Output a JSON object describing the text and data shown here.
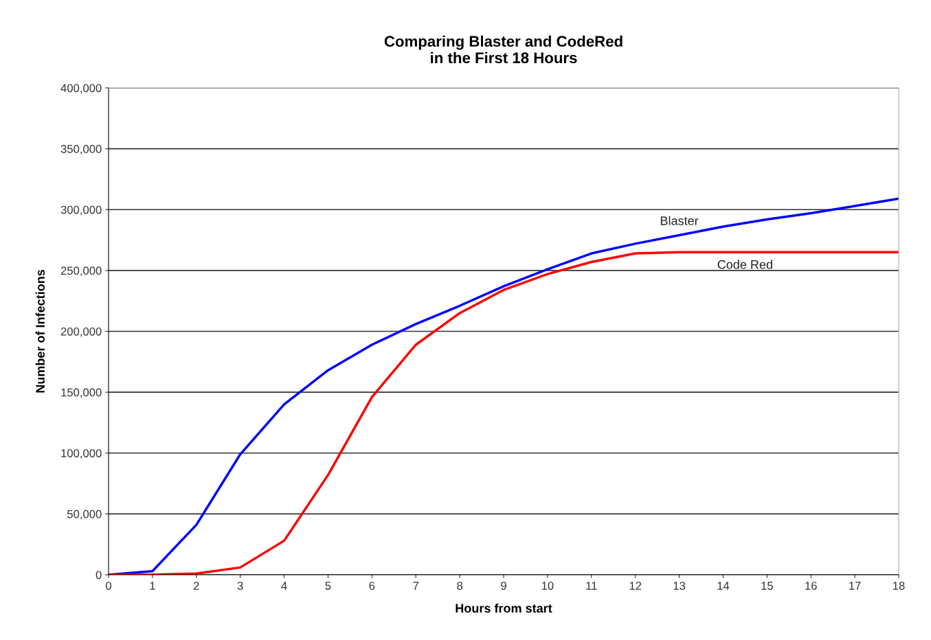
{
  "chart_data": {
    "type": "line",
    "title": "Comparing Blaster and CodeRed\nin the First 18 Hours",
    "xlabel": "Hours from start",
    "ylabel": "Number of Infections",
    "x": [
      0,
      1,
      2,
      3,
      4,
      5,
      6,
      7,
      8,
      9,
      10,
      11,
      12,
      13,
      14,
      15,
      16,
      17,
      18
    ],
    "series": [
      {
        "name": "Blaster",
        "color": "#0000ff",
        "values": [
          0,
          3000,
          41000,
          99000,
          140000,
          168000,
          189000,
          206000,
          221000,
          237000,
          251000,
          264000,
          272000,
          279000,
          286000,
          292000,
          297000,
          303000,
          309000
        ]
      },
      {
        "name": "Code Red",
        "color": "#ff0000",
        "values": [
          0,
          0,
          1000,
          6000,
          28000,
          82000,
          146000,
          189000,
          215000,
          234000,
          247000,
          257000,
          264000,
          265000,
          265000,
          265000,
          265000,
          265000,
          265000
        ]
      }
    ],
    "xlim": [
      0,
      18
    ],
    "xticks": [
      0,
      1,
      2,
      3,
      4,
      5,
      6,
      7,
      8,
      9,
      10,
      11,
      12,
      13,
      14,
      15,
      16,
      17,
      18
    ],
    "ylim": [
      0,
      400000
    ],
    "yticks": [
      {
        "value": 0,
        "label": "0"
      },
      {
        "value": 50000,
        "label": "50,000"
      },
      {
        "value": 100000,
        "label": "100,000"
      },
      {
        "value": 150000,
        "label": "150,000"
      },
      {
        "value": 200000,
        "label": "200,000"
      },
      {
        "value": 250000,
        "label": "250,000"
      },
      {
        "value": 300000,
        "label": "300,000"
      },
      {
        "value": 350000,
        "label": "350,000"
      },
      {
        "value": 400000,
        "label": "400,000"
      }
    ],
    "grid": "y",
    "legend": false,
    "marker": "none",
    "line_style": "solid"
  }
}
